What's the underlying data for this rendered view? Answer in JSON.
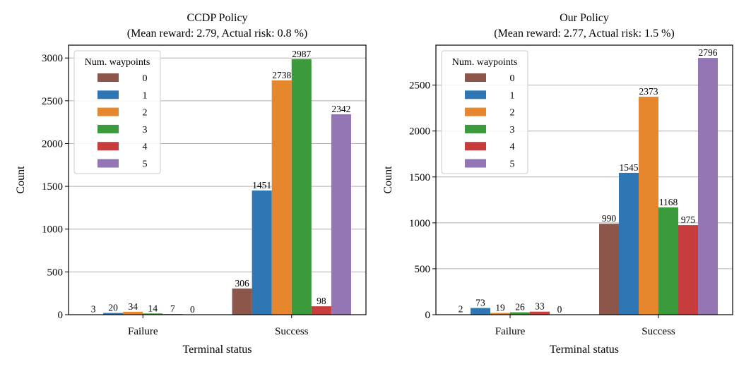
{
  "chart_data": [
    {
      "type": "bar",
      "title": "CCDP Policy",
      "subtitle": "(Mean reward: 2.79, Actual risk: 0.8 %)",
      "xlabel": "Terminal status",
      "ylabel": "Count",
      "categories": [
        "Failure",
        "Success"
      ],
      "ylim": [
        0,
        3150
      ],
      "yticks": [
        0,
        500,
        1000,
        1500,
        2000,
        2500,
        3000
      ],
      "grid": "horizontal",
      "legend_title": "Num. waypoints",
      "legend_position": "top-left",
      "series": [
        {
          "name": "0",
          "color": "#8c564b",
          "values": [
            3,
            306
          ]
        },
        {
          "name": "1",
          "color": "#2f77b4",
          "values": [
            20,
            1451
          ]
        },
        {
          "name": "2",
          "color": "#e6862d",
          "values": [
            34,
            2738
          ]
        },
        {
          "name": "3",
          "color": "#3b9a3b",
          "values": [
            14,
            2987
          ]
        },
        {
          "name": "4",
          "color": "#c73c3d",
          "values": [
            7,
            98
          ]
        },
        {
          "name": "5",
          "color": "#9476b5",
          "values": [
            0,
            2342
          ]
        }
      ]
    },
    {
      "type": "bar",
      "title": "Our Policy",
      "subtitle": "(Mean reward: 2.77, Actual risk: 1.5 %)",
      "xlabel": "Terminal status",
      "ylabel": "Count",
      "categories": [
        "Failure",
        "Success"
      ],
      "ylim": [
        0,
        2935
      ],
      "yticks": [
        0,
        500,
        1000,
        1500,
        2000,
        2500
      ],
      "grid": "horizontal",
      "legend_title": "Num. waypoints",
      "legend_position": "top-left",
      "series": [
        {
          "name": "0",
          "color": "#8c564b",
          "values": [
            2,
            990
          ]
        },
        {
          "name": "1",
          "color": "#2f77b4",
          "values": [
            73,
            1545
          ]
        },
        {
          "name": "2",
          "color": "#e6862d",
          "values": [
            19,
            2373
          ]
        },
        {
          "name": "3",
          "color": "#3b9a3b",
          "values": [
            26,
            1168
          ]
        },
        {
          "name": "4",
          "color": "#c73c3d",
          "values": [
            33,
            975
          ]
        },
        {
          "name": "5",
          "color": "#9476b5",
          "values": [
            0,
            2796
          ]
        }
      ]
    }
  ]
}
